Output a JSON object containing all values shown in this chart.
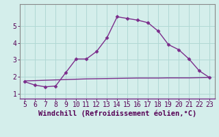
{
  "x": [
    5,
    6,
    7,
    8,
    9,
    10,
    11,
    12,
    13,
    14,
    15,
    16,
    17,
    18,
    19,
    20,
    21,
    22,
    23
  ],
  "y_line1": [
    1.7,
    1.5,
    1.4,
    1.45,
    2.25,
    3.05,
    3.05,
    3.5,
    4.3,
    5.55,
    5.45,
    5.35,
    5.2,
    4.7,
    3.9,
    3.6,
    3.05,
    2.35,
    1.95
  ],
  "y_line2": [
    1.75,
    1.77,
    1.79,
    1.81,
    1.83,
    1.85,
    1.87,
    1.88,
    1.89,
    1.9,
    1.91,
    1.92,
    1.92,
    1.92,
    1.93,
    1.93,
    1.93,
    1.94,
    1.95
  ],
  "line_color": "#7B2D8B",
  "bg_color": "#d4eeeb",
  "grid_color": "#b0d8d4",
  "axis_color": "#888888",
  "xlabel": "Windchill (Refroidissement éolien,°C)",
  "xlim": [
    4.5,
    23.5
  ],
  "ylim": [
    0.7,
    6.3
  ],
  "xticks": [
    5,
    6,
    7,
    8,
    9,
    10,
    11,
    12,
    13,
    14,
    15,
    16,
    17,
    18,
    19,
    20,
    21,
    22,
    23
  ],
  "yticks": [
    1,
    2,
    3,
    4,
    5
  ],
  "xlabel_fontsize": 7.5,
  "tick_fontsize": 7
}
